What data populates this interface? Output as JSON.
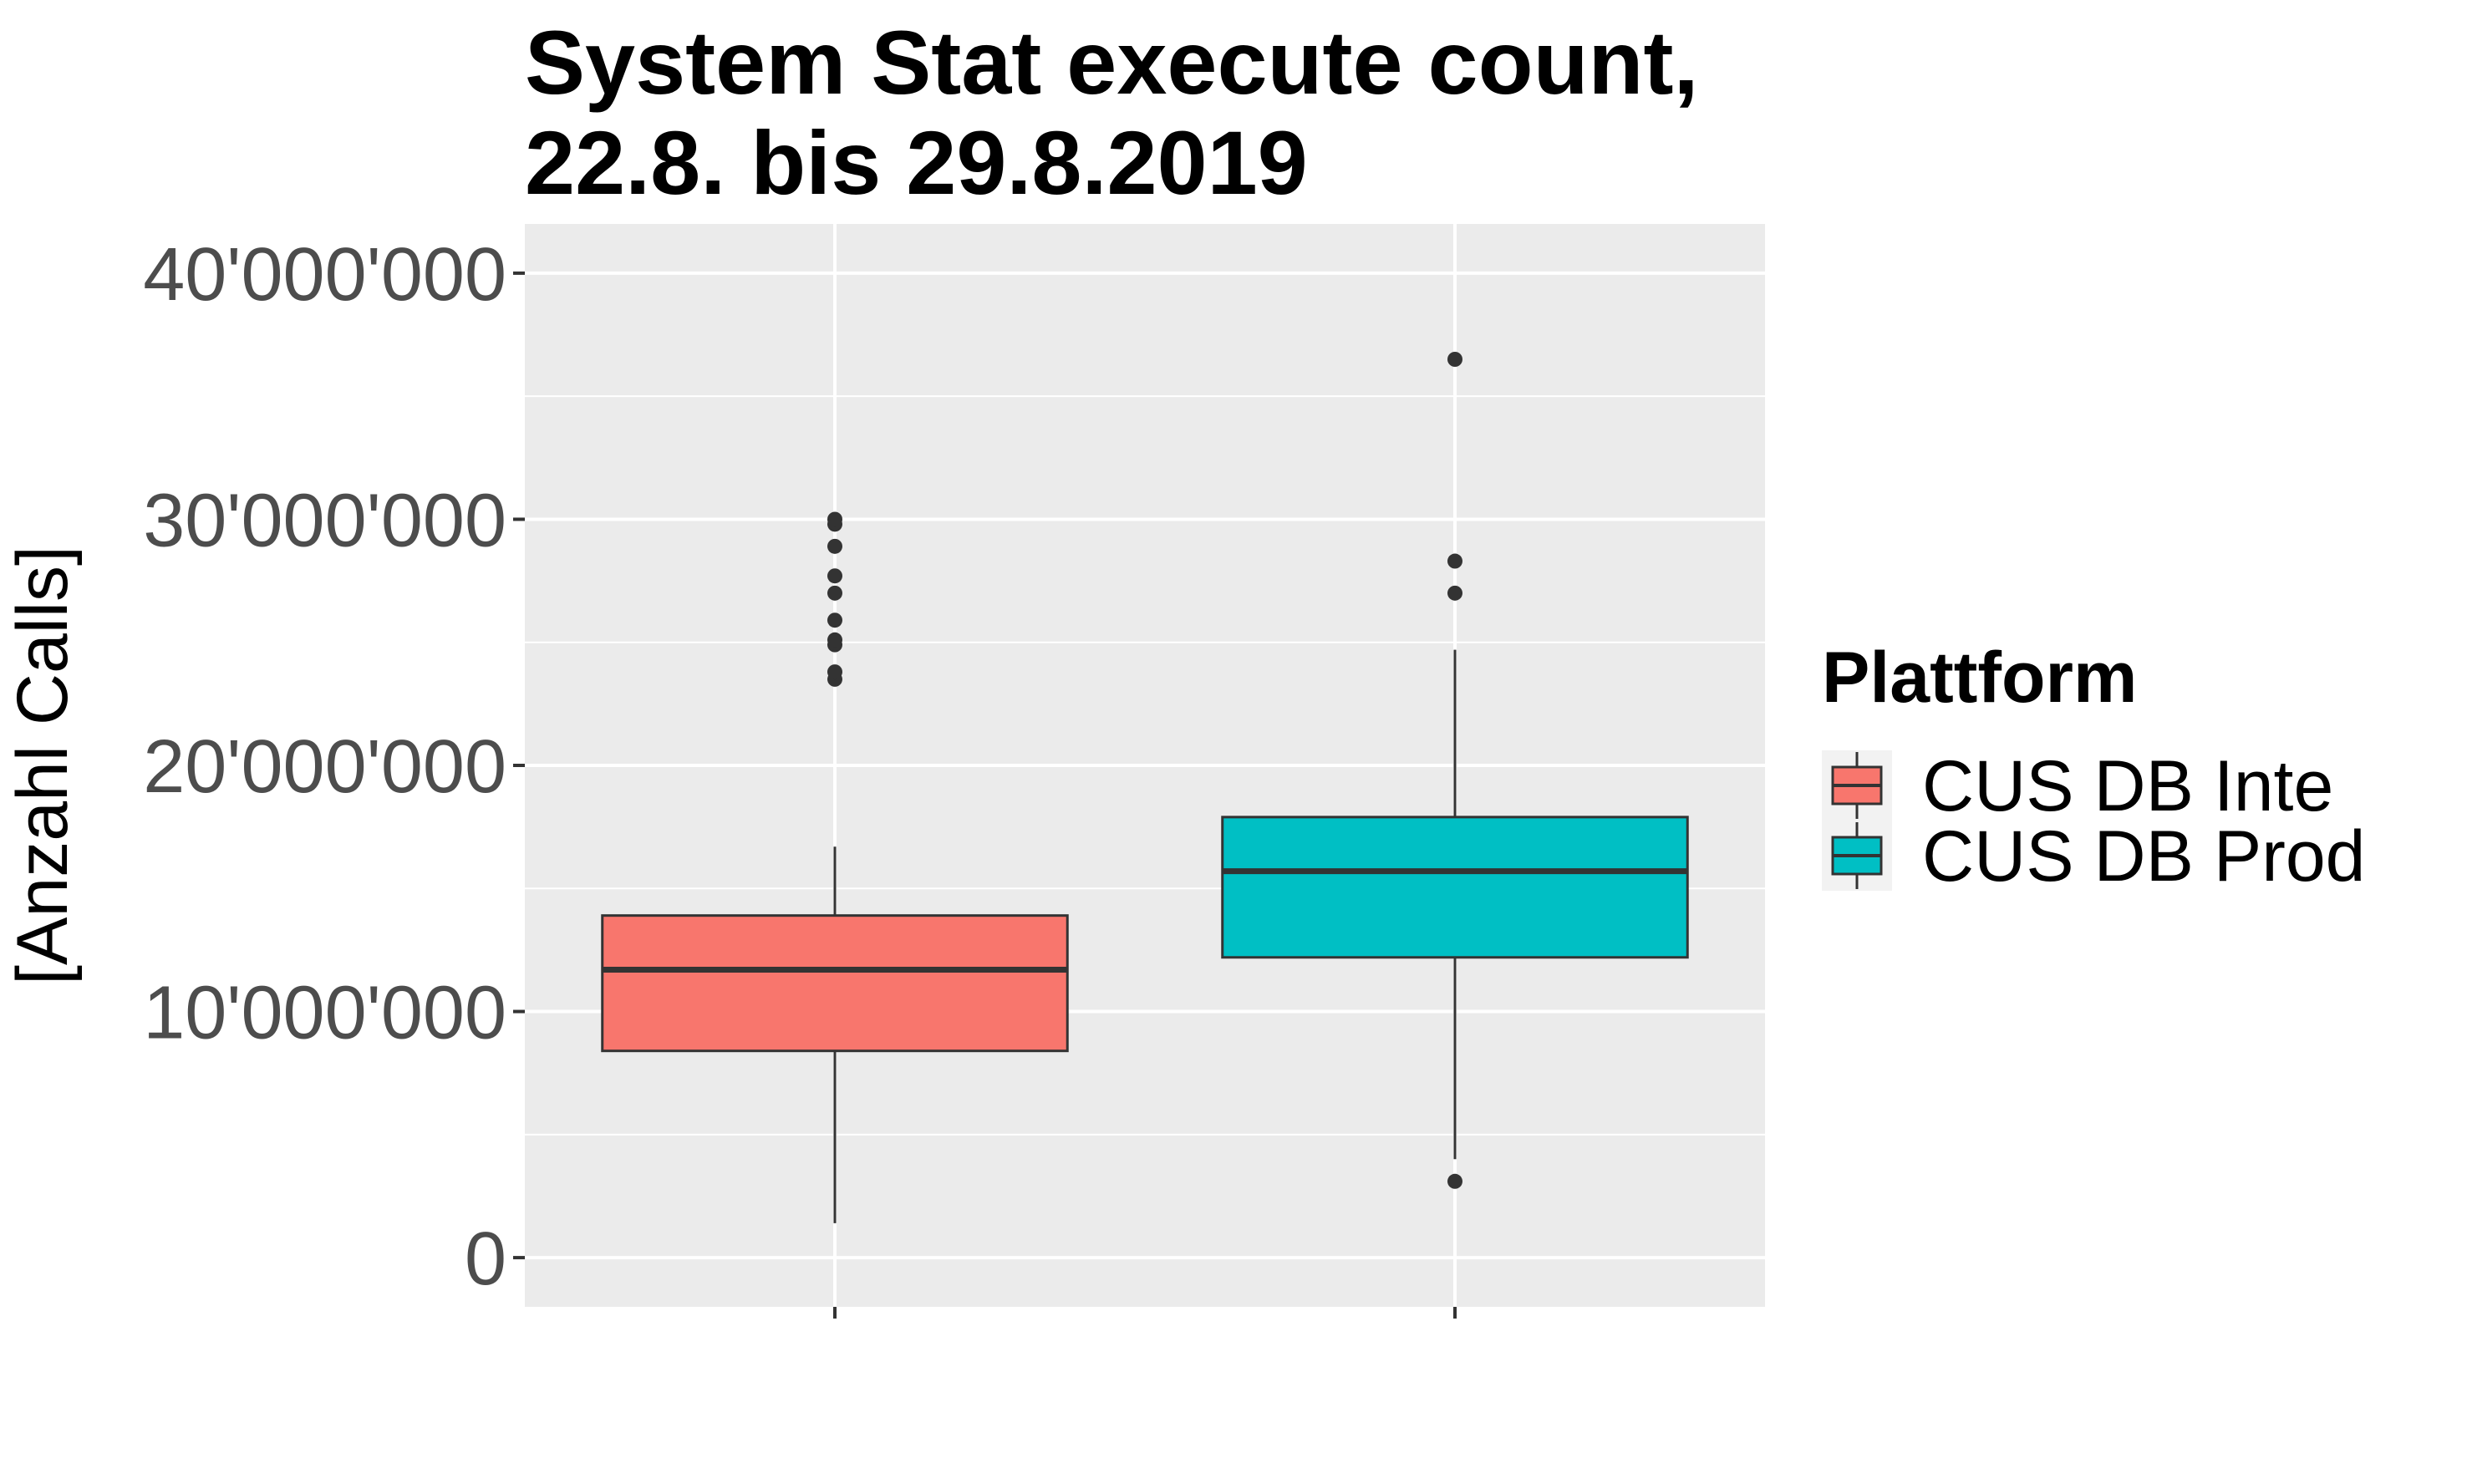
{
  "chart_data": {
    "type": "boxplot",
    "title_lines": [
      "System Stat execute count,",
      "22.8. bis 29.8.2019"
    ],
    "xlabel": "",
    "ylabel": "[Anzahl Calls]",
    "ylim": [
      -2000000,
      42000000
    ],
    "yticks": [
      0,
      10000000,
      20000000,
      30000000,
      40000000
    ],
    "ytick_labels": [
      "0",
      "10'000'000",
      "20'000'000",
      "30'000'000",
      "40'000'000"
    ],
    "grid": true,
    "legend": {
      "title": "Plattform",
      "position": "right",
      "entries": [
        "CUS DB Inte",
        "CUS DB Prod"
      ]
    },
    "series": [
      {
        "name": "CUS DB Inte",
        "color": "#F8766D",
        "whisker_low": 1400000,
        "q1": 8400000,
        "median": 11700000,
        "q3": 13900000,
        "whisker_high": 16700000,
        "outliers": [
          23500000,
          23800000,
          24900000,
          25100000,
          25900000,
          27000000,
          27700000,
          28900000,
          29800000,
          30000000
        ]
      },
      {
        "name": "CUS DB Prod",
        "color": "#00BFC4",
        "whisker_low": 4000000,
        "q1": 12200000,
        "median": 15700000,
        "q3": 17900000,
        "whisker_high": 24700000,
        "outliers": [
          3100000,
          27000000,
          28300000,
          36500000
        ]
      }
    ]
  }
}
